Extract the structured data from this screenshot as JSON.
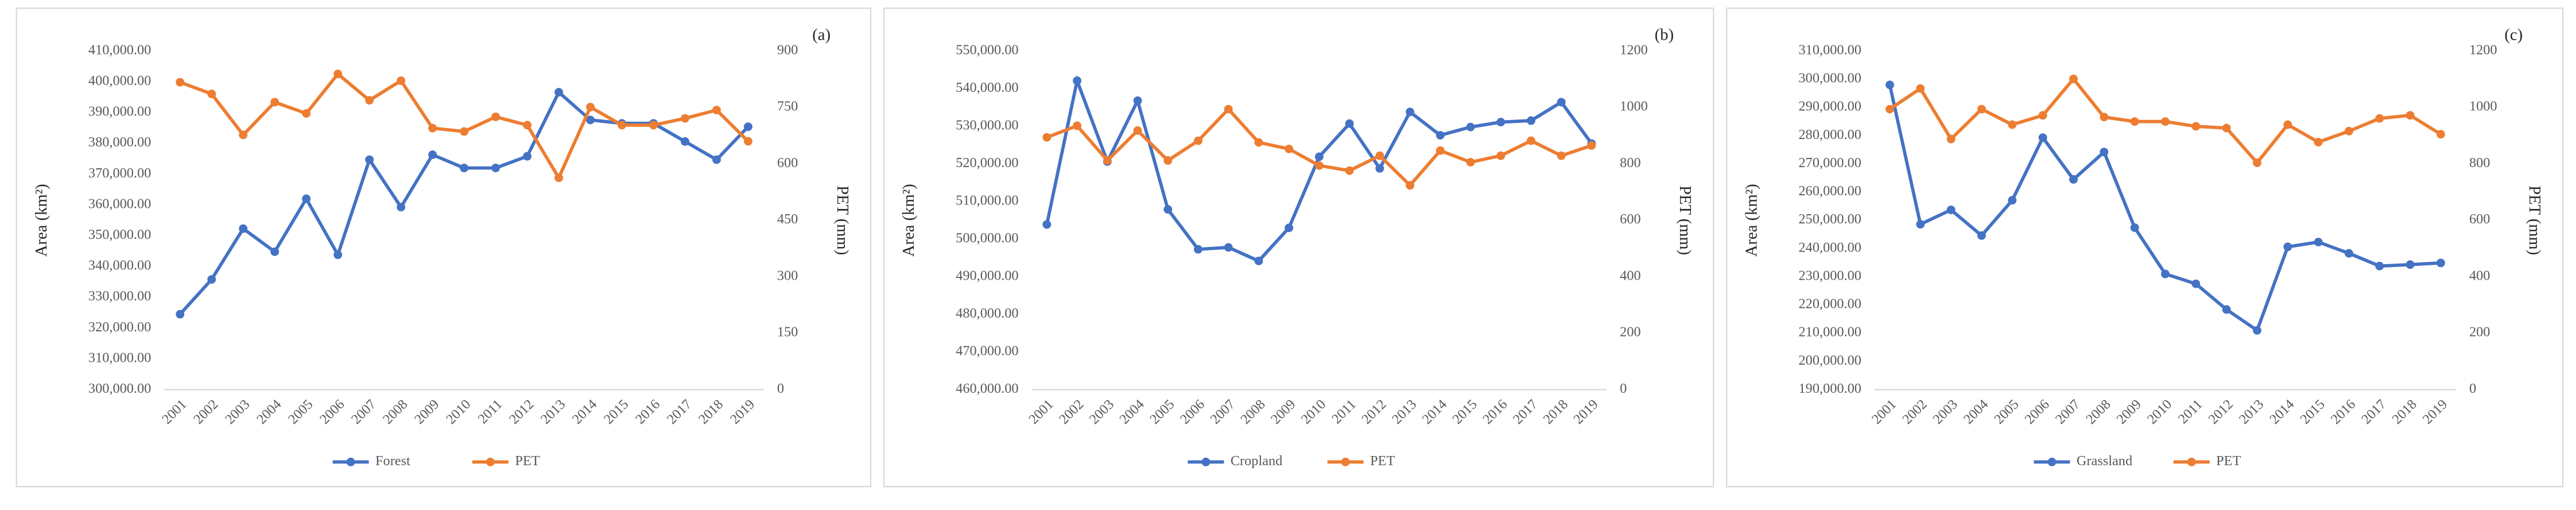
{
  "chart_data": [
    {
      "type": "line",
      "label": "(a)",
      "y_label": "Area (km²)",
      "y2_label": "PET (mm)",
      "grid": false,
      "categories": [
        "2001",
        "2002",
        "2003",
        "2004",
        "2005",
        "2006",
        "2007",
        "2008",
        "2009",
        "2010",
        "2011",
        "2012",
        "2013",
        "2014",
        "2015",
        "2016",
        "2017",
        "2018",
        "2019"
      ],
      "series": [
        {
          "name": "Forest",
          "color": "#4472c4",
          "values": [
            324500,
            335800,
            352300,
            344800,
            362000,
            343800,
            374700,
            359300,
            376300,
            372000,
            372000,
            375800,
            396600,
            387600,
            386500,
            386500,
            380600,
            374700,
            385400
          ]
        },
        {
          "name": "PET",
          "color": "#ed7d31",
          "axis": "y2",
          "values": [
            817,
            786,
            677,
            764,
            734,
            839,
            769,
            821,
            695,
            686,
            725,
            703,
            563,
            751,
            703,
            703,
            721,
            743,
            660
          ]
        }
      ],
      "ylim": [
        300000,
        410000
      ],
      "yticks": [
        {
          "value": 300000,
          "label": "300,000.00"
        },
        {
          "value": 310000,
          "label": "310,000.00"
        },
        {
          "value": 320000,
          "label": "320,000.00"
        },
        {
          "value": 330000,
          "label": "330,000.00"
        },
        {
          "value": 340000,
          "label": "340,000.00"
        },
        {
          "value": 350000,
          "label": "350,000.00"
        },
        {
          "value": 360000,
          "label": "360,000.00"
        },
        {
          "value": 370000,
          "label": "370,000.00"
        },
        {
          "value": 380000,
          "label": "380,000.00"
        },
        {
          "value": 390000,
          "label": "390,000.00"
        },
        {
          "value": 400000,
          "label": "400,000.00"
        },
        {
          "value": 410000,
          "label": "410,000.00"
        }
      ],
      "y2lim": [
        0,
        900
      ],
      "y2ticks": [
        0,
        150,
        300,
        450,
        600,
        750,
        900
      ]
    },
    {
      "type": "line",
      "label": "(b)",
      "y_label": "Area (km²)",
      "y2_label": "PET (mm)",
      "grid": false,
      "categories": [
        "2001",
        "2002",
        "2003",
        "2004",
        "2005",
        "2006",
        "2007",
        "2008",
        "2009",
        "2010",
        "2011",
        "2012",
        "2013",
        "2014",
        "2015",
        "2016",
        "2017",
        "2018",
        "2019"
      ],
      "series": [
        {
          "name": "Cropland",
          "color": "#4472c4",
          "values": [
            503900,
            542100,
            520600,
            536800,
            507900,
            497300,
            497800,
            494200,
            503000,
            521900,
            530700,
            518800,
            533800,
            527600,
            529800,
            531100,
            531500,
            536400,
            525400
          ]
        },
        {
          "name": "PET",
          "color": "#ed7d31",
          "axis": "y2",
          "values": [
            894,
            935,
            812,
            918,
            812,
            882,
            994,
            876,
            853,
            794,
            776,
            829,
            724,
            847,
            806,
            829,
            882,
            829,
            865
          ]
        }
      ],
      "ylim": [
        460000,
        550000
      ],
      "yticks": [
        {
          "value": 460000,
          "label": "460,000.00"
        },
        {
          "value": 470000,
          "label": "470,000.00"
        },
        {
          "value": 480000,
          "label": "480,000.00"
        },
        {
          "value": 490000,
          "label": "490,000.00"
        },
        {
          "value": 500000,
          "label": "500,000.00"
        },
        {
          "value": 510000,
          "label": "510,000.00"
        },
        {
          "value": 520000,
          "label": "520,000.00"
        },
        {
          "value": 530000,
          "label": "530,000.00"
        },
        {
          "value": 540000,
          "label": "540,000.00"
        },
        {
          "value": 550000,
          "label": "550,000.00"
        }
      ],
      "y2lim": [
        0,
        1200
      ],
      "y2ticks": [
        0,
        200,
        400,
        600,
        800,
        1000,
        1200
      ]
    },
    {
      "type": "line",
      "label": "(c)",
      "y_label": "Area (km²)",
      "y2_label": "PET (mm)",
      "grid": false,
      "categories": [
        "2001",
        "2002",
        "2003",
        "2004",
        "2005",
        "2006",
        "2007",
        "2008",
        "2009",
        "2010",
        "2011",
        "2012",
        "2013",
        "2014",
        "2015",
        "2016",
        "2017",
        "2018",
        "2019"
      ],
      "series": [
        {
          "name": "Grassland",
          "color": "#4472c4",
          "values": [
            298000,
            248600,
            253700,
            244600,
            257100,
            279300,
            264500,
            274200,
            247400,
            231000,
            227500,
            218400,
            211000,
            240600,
            242300,
            238300,
            233800,
            234300,
            234900
          ]
        },
        {
          "name": "PET",
          "color": "#ed7d31",
          "axis": "y2",
          "values": [
            994,
            1067,
            888,
            994,
            939,
            972,
            1101,
            966,
            950,
            950,
            933,
            927,
            804,
            939,
            877,
            916,
            961,
            972,
            905
          ]
        }
      ],
      "ylim": [
        190000,
        310000
      ],
      "yticks": [
        {
          "value": 190000,
          "label": "190,000.00"
        },
        {
          "value": 200000,
          "label": "200,000.00"
        },
        {
          "value": 210000,
          "label": "210,000.00"
        },
        {
          "value": 220000,
          "label": "220,000.00"
        },
        {
          "value": 230000,
          "label": "230,000.00"
        },
        {
          "value": 240000,
          "label": "240,000.00"
        },
        {
          "value": 250000,
          "label": "250,000.00"
        },
        {
          "value": 260000,
          "label": "260,000.00"
        },
        {
          "value": 270000,
          "label": "270,000.00"
        },
        {
          "value": 280000,
          "label": "280,000.00"
        },
        {
          "value": 290000,
          "label": "290,000.00"
        },
        {
          "value": 300000,
          "label": "300,000.00"
        },
        {
          "value": 310000,
          "label": "310,000.00"
        }
      ],
      "y2lim": [
        0,
        1200
      ],
      "y2ticks": [
        0,
        200,
        400,
        600,
        800,
        1000,
        1200
      ]
    }
  ]
}
